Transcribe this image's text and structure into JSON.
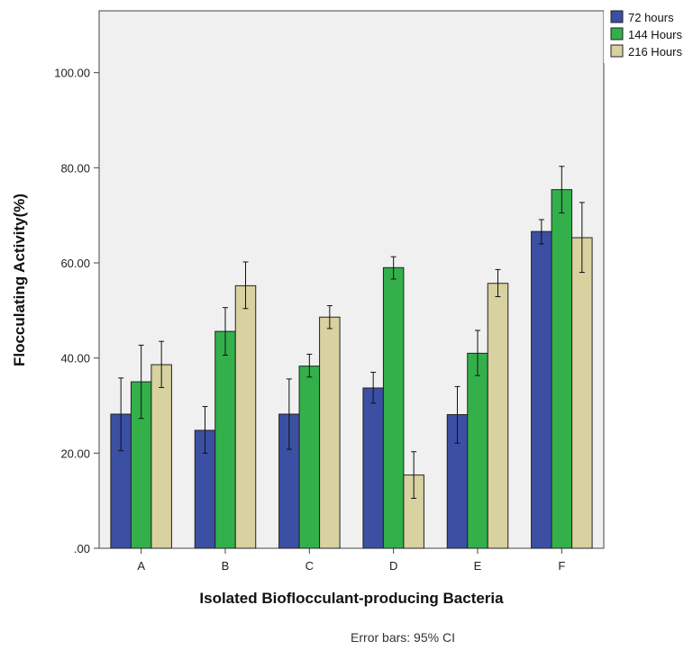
{
  "chart_data": {
    "type": "bar",
    "title": "",
    "xlabel": "Isolated Bioflocculant-producing Bacteria",
    "ylabel": "Flocculating Activity(%)",
    "ylim": [
      0,
      113
    ],
    "yticks": [
      0,
      20,
      40,
      60,
      80,
      100
    ],
    "ytick_labels": [
      ".00",
      "20.00",
      "40.00",
      "60.00",
      "80.00",
      "100.00"
    ],
    "categories": [
      "A",
      "B",
      "C",
      "D",
      "E",
      "F"
    ],
    "series": [
      {
        "name": "72 hours",
        "color": "#3b4fa3",
        "values": [
          28.2,
          24.8,
          28.2,
          33.7,
          28.1,
          66.6
        ],
        "err_low": [
          20.5,
          20.0,
          20.8,
          30.5,
          22.1,
          64.0
        ],
        "err_high": [
          35.8,
          29.8,
          35.6,
          37.0,
          34.0,
          69.1
        ]
      },
      {
        "name": "144 Hours",
        "color": "#33b04a",
        "values": [
          35.0,
          45.6,
          38.3,
          59.0,
          41.0,
          75.4
        ],
        "err_low": [
          27.3,
          40.6,
          36.0,
          56.6,
          36.3,
          70.5
        ],
        "err_high": [
          42.7,
          50.6,
          40.8,
          61.3,
          45.8,
          80.3
        ]
      },
      {
        "name": "216 Hours",
        "color": "#d8d1a0",
        "values": [
          38.6,
          55.2,
          48.6,
          15.4,
          55.7,
          65.3
        ],
        "err_low": [
          33.8,
          50.4,
          46.2,
          10.5,
          52.9,
          58.0
        ],
        "err_high": [
          43.5,
          60.2,
          51.0,
          20.3,
          58.6,
          72.7
        ]
      }
    ],
    "grid": false,
    "legend_position": "top-right",
    "plot_background": "#f0f0f0",
    "footnote": "Error bars: 95% CI"
  }
}
